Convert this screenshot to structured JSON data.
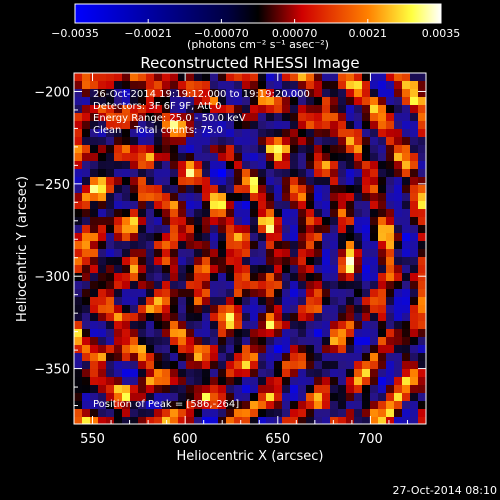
{
  "chart_data": {
    "type": "heatmap",
    "title": "Reconstructed RHESSI Image",
    "xlabel": "Heliocentric X (arcsec)",
    "ylabel": "Heliocentric Y (arcsec)",
    "xlim": [
      540,
      730
    ],
    "ylim": [
      -380,
      -190
    ],
    "x_ticks": [
      "550",
      "600",
      "650",
      "700"
    ],
    "x_tick_values": [
      550,
      600,
      650,
      700
    ],
    "y_ticks": [
      "−200",
      "−250",
      "−300",
      "−350"
    ],
    "y_tick_values": [
      -200,
      -250,
      -300,
      -350
    ],
    "colorbar": {
      "min": -0.0035,
      "max": 0.0035,
      "tick_labels": [
        "−0.0035",
        "−0.0021",
        "−0.00070",
        "0.00070",
        "0.0021",
        "0.0035"
      ],
      "tick_values": [
        -0.0035,
        -0.0021,
        -0.0007,
        0.0007,
        0.0021,
        0.0035
      ],
      "units_label": "(photons cm⁻² s⁻¹ asec⁻²)",
      "colormap": "blue-black-red-yellow-white"
    },
    "annotations": [
      "26-Oct-2014 19:19:12.000 to 19:19:20.000",
      "Detectors: 3F 6F 9F, Att 0",
      "Energy Range: 25.0 - 50.0 keV",
      "Clean    Total counts: 75.0"
    ],
    "peak_label": "Position of Peak = [586,-264]",
    "peak_position": [
      586,
      -264
    ],
    "footer_timestamp": "27-Oct-2014 08:10"
  },
  "colors": {
    "background": "#000000",
    "text": "#ffffff",
    "colormap_stops": [
      "#0000ff",
      "#000000",
      "#ff0000",
      "#ffff00",
      "#ffffff"
    ]
  }
}
